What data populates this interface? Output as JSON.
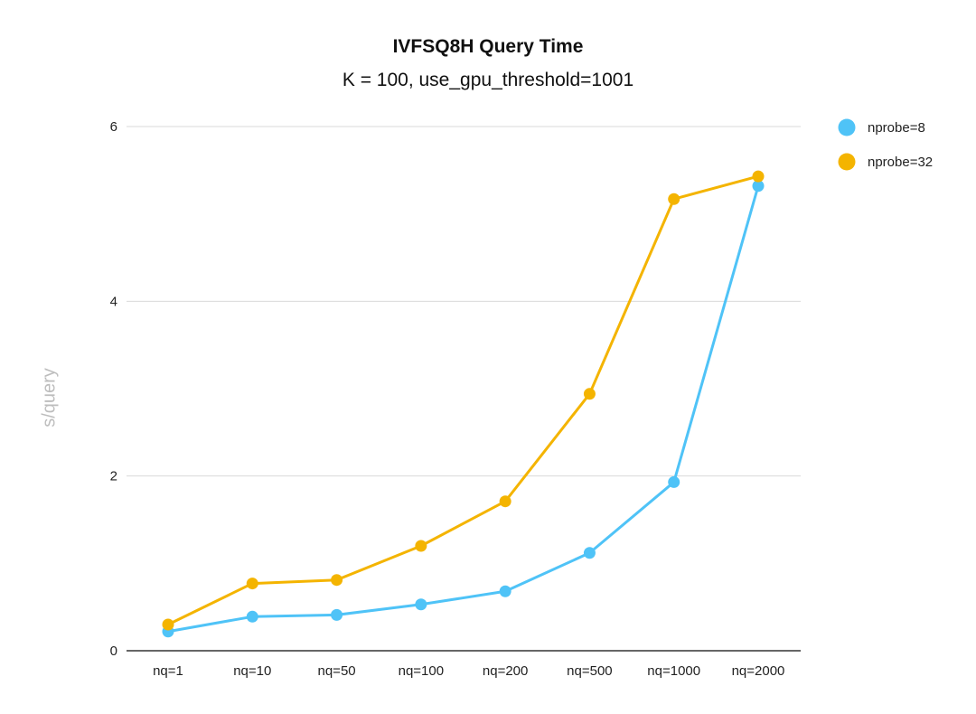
{
  "chart_data": {
    "type": "line",
    "title": "IVFSQ8H Query Time",
    "subtitle": "K = 100, use_gpu_threshold=1001",
    "xlabel": "",
    "ylabel": "s/query",
    "categories": [
      "nq=1",
      "nq=10",
      "nq=50",
      "nq=100",
      "nq=200",
      "nq=500",
      "nq=1000",
      "nq=2000"
    ],
    "yticks": [
      "0",
      "2",
      "4",
      "6"
    ],
    "ylim": [
      0,
      6
    ],
    "grid": true,
    "legend_position": "right",
    "series": [
      {
        "name": "nprobe=8",
        "color": "#4fc3f7",
        "values": [
          0.22,
          0.39,
          0.41,
          0.53,
          0.68,
          1.12,
          1.93,
          5.32
        ]
      },
      {
        "name": "nprobe=32",
        "color": "#f4b400",
        "values": [
          0.3,
          0.77,
          0.81,
          1.2,
          1.71,
          2.94,
          5.17,
          5.43
        ]
      }
    ]
  }
}
